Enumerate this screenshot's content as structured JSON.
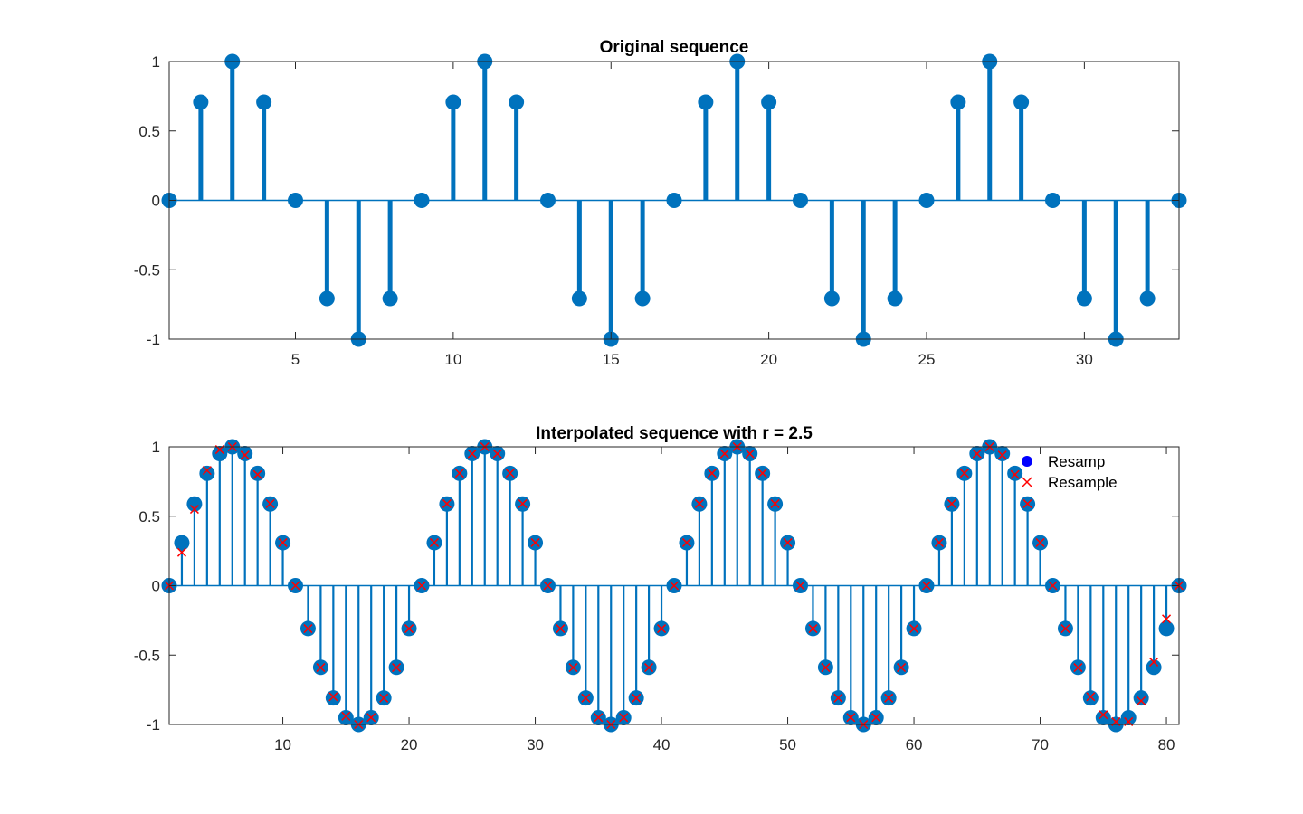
{
  "colors": {
    "stem": "#0072bd",
    "resample_marker": "#ff0000",
    "resamp_legend_marker": "#0000ff",
    "axes": "#262626"
  },
  "chart_data": [
    {
      "type": "stem",
      "title": "Original sequence",
      "xlim": [
        1,
        33
      ],
      "ylim": [
        -1,
        1
      ],
      "xticks": [
        5,
        10,
        15,
        20,
        25,
        30
      ],
      "yticks": [
        -1,
        -0.5,
        0,
        0.5,
        1
      ],
      "xtick_labels": [
        "5",
        "10",
        "15",
        "20",
        "25",
        "30"
      ],
      "ytick_labels": [
        "-1",
        "-0.5",
        "0",
        "0.5",
        "1"
      ],
      "grid": false,
      "series": [
        {
          "marker": "filled-circle",
          "x": [
            1,
            2,
            3,
            4,
            5,
            6,
            7,
            8,
            9,
            10,
            11,
            12,
            13,
            14,
            15,
            16,
            17,
            18,
            19,
            20,
            21,
            22,
            23,
            24,
            25,
            26,
            27,
            28,
            29,
            30,
            31,
            32,
            33
          ],
          "values": [
            0,
            0.707,
            1,
            0.707,
            0,
            -0.707,
            -1,
            -0.707,
            0,
            0.707,
            1,
            0.707,
            0,
            -0.707,
            -1,
            -0.707,
            0,
            0.707,
            1,
            0.707,
            0,
            -0.707,
            -1,
            -0.707,
            0,
            0.707,
            1,
            0.707,
            0,
            -0.707,
            -1,
            -0.707,
            0
          ]
        }
      ]
    },
    {
      "type": "stem",
      "title": "Interpolated sequence with r = 2.5",
      "xlim": [
        1,
        81
      ],
      "ylim": [
        -1,
        1
      ],
      "xticks": [
        10,
        20,
        30,
        40,
        50,
        60,
        70,
        80
      ],
      "yticks": [
        -1,
        -0.5,
        0,
        0.5,
        1
      ],
      "xtick_labels": [
        "10",
        "20",
        "30",
        "40",
        "50",
        "60",
        "70",
        "80"
      ],
      "ytick_labels": [
        "-1",
        "-0.5",
        "0",
        "0.5",
        "1"
      ],
      "grid": false,
      "legend": {
        "placement": "top-right",
        "entries": [
          "Resamp",
          "Resample"
        ]
      },
      "x": [
        1,
        2,
        3,
        4,
        5,
        6,
        7,
        8,
        9,
        10,
        11,
        12,
        13,
        14,
        15,
        16,
        17,
        18,
        19,
        20,
        21,
        22,
        23,
        24,
        25,
        26,
        27,
        28,
        29,
        30,
        31,
        32,
        33,
        34,
        35,
        36,
        37,
        38,
        39,
        40,
        41,
        42,
        43,
        44,
        45,
        46,
        47,
        48,
        49,
        50,
        51,
        52,
        53,
        54,
        55,
        56,
        57,
        58,
        59,
        60,
        61,
        62,
        63,
        64,
        65,
        66,
        67,
        68,
        69,
        70,
        71,
        72,
        73,
        74,
        75,
        76,
        77,
        78,
        79,
        80,
        81
      ],
      "series": [
        {
          "name": "Resamp",
          "marker": "filled-circle",
          "values": [
            0,
            0.309,
            0.588,
            0.809,
            0.951,
            1,
            0.951,
            0.809,
            0.588,
            0.309,
            0,
            -0.309,
            -0.588,
            -0.809,
            -0.951,
            -1,
            -0.951,
            -0.809,
            -0.588,
            -0.309,
            0,
            0.309,
            0.588,
            0.809,
            0.951,
            1,
            0.951,
            0.809,
            0.588,
            0.309,
            0,
            -0.309,
            -0.588,
            -0.809,
            -0.951,
            -1,
            -0.951,
            -0.809,
            -0.588,
            -0.309,
            0,
            0.309,
            0.588,
            0.809,
            0.951,
            1,
            0.951,
            0.809,
            0.588,
            0.309,
            0,
            -0.309,
            -0.588,
            -0.809,
            -0.951,
            -1,
            -0.951,
            -0.809,
            -0.588,
            -0.309,
            0,
            0.309,
            0.588,
            0.809,
            0.951,
            1,
            0.951,
            0.809,
            0.588,
            0.309,
            0,
            -0.309,
            -0.588,
            -0.809,
            -0.951,
            -1,
            -0.951,
            -0.809,
            -0.588,
            -0.309,
            0
          ]
        },
        {
          "name": "Resample",
          "marker": "x",
          "values": [
            0,
            0.24,
            0.55,
            0.83,
            0.98,
            1,
            0.94,
            0.8,
            0.59,
            0.31,
            0,
            -0.31,
            -0.59,
            -0.8,
            -0.94,
            -1,
            -0.95,
            -0.81,
            -0.59,
            -0.31,
            0,
            0.31,
            0.59,
            0.81,
            0.95,
            1,
            0.95,
            0.81,
            0.59,
            0.31,
            0,
            -0.31,
            -0.59,
            -0.81,
            -0.95,
            -1,
            -0.95,
            -0.81,
            -0.59,
            -0.31,
            0,
            0.31,
            0.59,
            0.81,
            0.95,
            1,
            0.95,
            0.81,
            0.59,
            0.31,
            0,
            -0.31,
            -0.59,
            -0.81,
            -0.95,
            -1,
            -0.95,
            -0.81,
            -0.59,
            -0.31,
            0,
            0.31,
            0.59,
            0.81,
            0.95,
            1,
            0.94,
            0.8,
            0.59,
            0.31,
            0,
            -0.31,
            -0.59,
            -0.8,
            -0.93,
            -0.98,
            -0.98,
            -0.83,
            -0.55,
            -0.24,
            0
          ]
        }
      ]
    }
  ]
}
